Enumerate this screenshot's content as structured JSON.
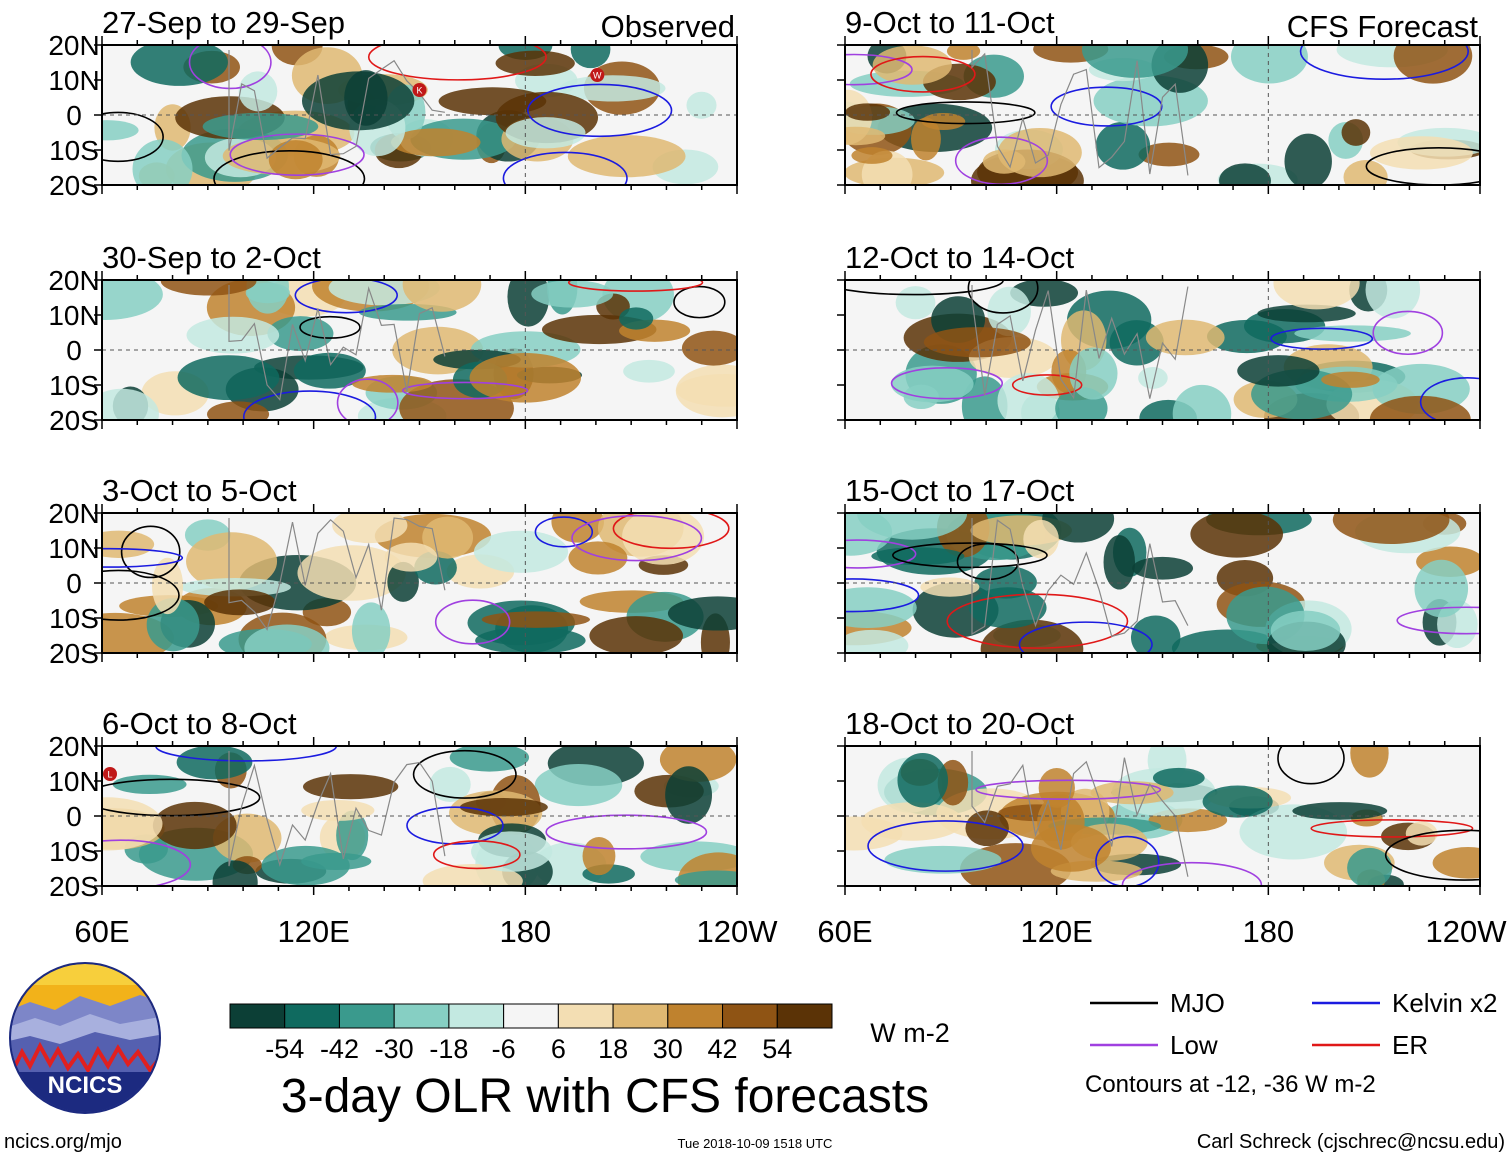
{
  "chart_data": {
    "type": "heatmap",
    "title": "3-day OLR with CFS forecasts",
    "x_ticks": [
      "60E",
      "120E",
      "180",
      "120W"
    ],
    "y_ticks": [
      "20N",
      "10N",
      "0",
      "10S",
      "20S"
    ],
    "x_range_deg_lon": [
      60,
      240
    ],
    "y_range_deg_lat": [
      -20,
      20
    ],
    "panel_groups": {
      "left": "Observed",
      "right": "CFS Forecast"
    },
    "panels": [
      {
        "label": "27-Sep to 29-Sep",
        "group": "Observed",
        "storms": [
          "K",
          "W"
        ]
      },
      {
        "label": "30-Sep to 2-Oct",
        "group": "Observed",
        "storms": []
      },
      {
        "label": "3-Oct to 5-Oct",
        "group": "Observed",
        "storms": []
      },
      {
        "label": "6-Oct to 8-Oct",
        "group": "Observed",
        "storms": [
          "L"
        ]
      },
      {
        "label": "9-Oct to 11-Oct",
        "group": "CFS Forecast",
        "storms": []
      },
      {
        "label": "12-Oct to 14-Oct",
        "group": "CFS Forecast",
        "storms": []
      },
      {
        "label": "15-Oct to 17-Oct",
        "group": "CFS Forecast",
        "storms": []
      },
      {
        "label": "18-Oct to 20-Oct",
        "group": "CFS Forecast",
        "storms": []
      }
    ],
    "colorbar": {
      "unit": "W m-2",
      "labels": [
        "-54",
        "-42",
        "-30",
        "-18",
        "-6",
        "6",
        "18",
        "30",
        "42",
        "54"
      ],
      "colors": [
        "#0c3f36",
        "#0f6a5f",
        "#3a9a8d",
        "#86cfc3",
        "#c3e9e1",
        "#f5f5f5",
        "#f3deb3",
        "#dfb872",
        "#bf822e",
        "#8f5414",
        "#5b3306"
      ]
    },
    "legend": [
      {
        "name": "MJO",
        "color": "#000000"
      },
      {
        "name": "Kelvin x2",
        "color": "#1b1be0"
      },
      {
        "name": "Low",
        "color": "#a040e0"
      },
      {
        "name": "ER",
        "color": "#e01818"
      }
    ],
    "contour_note": "Contours at -12, -36 W m-2"
  },
  "footer": {
    "logo_text": "NCICS",
    "url": "ncics.org/mjo",
    "timestamp": "Tue 2018-10-09 1518 UTC",
    "credit": "Carl Schreck (cjschrec@ncsu.edu)"
  }
}
